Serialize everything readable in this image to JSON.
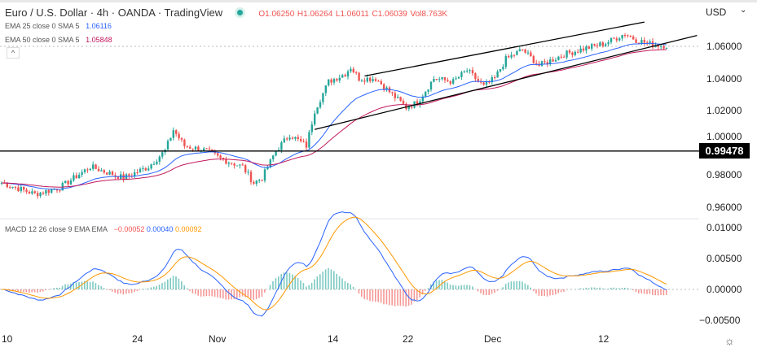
{
  "header": {
    "title": "Euro / U.S. Dollar · 4h · OANDA · TradingView",
    "o": "O1.06250",
    "h": "H1.06264",
    "l": "L1.06011",
    "c": "C1.06039",
    "vol": "Vol8.763K"
  },
  "indicators": [
    {
      "label": "EMA 25 close 0 SMA 5",
      "value": "1.06116",
      "color": "#2962ff"
    },
    {
      "label": "EMA 50 close 0 SMA 5",
      "value": "1.05848",
      "color": "#c2185b"
    }
  ],
  "macd": {
    "label": "MACD 12 26 close 9 EMA EMA",
    "hist": "−0.00052",
    "macd": "0.00040",
    "signal": "0.00092"
  },
  "currency": "USD",
  "colors": {
    "up": "#26a69a",
    "down": "#ef5350",
    "macd": "#2962ff",
    "signal": "#ff9800",
    "ema25": "#2962ff",
    "ema50": "#c2185b"
  },
  "chart_data": {
    "type": "candlestick",
    "x_unit": "bar index (4h)",
    "price_ylim": [
      0.95,
      1.075
    ],
    "price_ticks": [
      "1.06000",
      "1.04000",
      "1.02000",
      "1.00000",
      "0.98000",
      "0.96000"
    ],
    "macd_ylim": [
      -0.0065,
      0.0105
    ],
    "macd_ticks": [
      "0.01000",
      "0.00500",
      "0.00000",
      "−0.00500"
    ],
    "x_ticks": [
      "10",
      "24",
      "Nov",
      "14",
      "22",
      "Dec",
      "12"
    ],
    "horizontal_level": {
      "price": 0.99478,
      "label": "0.99478"
    },
    "trendlines": [
      {
        "from": [
          131,
          1.0415
        ],
        "to": [
          228,
          1.0738
        ]
      },
      {
        "from": [
          113,
          1.0082
        ],
        "to": [
          247,
          1.0651
        ]
      }
    ],
    "close_path": [
      [
        0,
        0.975
      ],
      [
        12,
        0.968
      ],
      [
        21,
        0.972
      ],
      [
        32,
        0.985
      ],
      [
        44,
        0.978
      ],
      [
        53,
        0.985
      ],
      [
        59,
        0.995
      ],
      [
        62,
        1.008
      ],
      [
        66,
        0.998
      ],
      [
        74,
        0.995
      ],
      [
        79,
        0.99
      ],
      [
        87,
        0.985
      ],
      [
        91,
        0.975
      ],
      [
        94,
        0.978
      ],
      [
        99,
        0.995
      ],
      [
        104,
        1.005
      ],
      [
        110,
        0.998
      ],
      [
        113,
        1.02
      ],
      [
        118,
        1.038
      ],
      [
        124,
        1.043
      ],
      [
        126,
        1.047
      ],
      [
        129,
        1.04
      ],
      [
        135,
        1.04
      ],
      [
        141,
        1.03
      ],
      [
        146,
        1.022
      ],
      [
        150,
        1.025
      ],
      [
        156,
        1.04
      ],
      [
        163,
        1.038
      ],
      [
        168,
        1.045
      ],
      [
        174,
        1.035
      ],
      [
        178,
        1.04
      ],
      [
        182,
        1.052
      ],
      [
        188,
        1.058
      ],
      [
        194,
        1.048
      ],
      [
        203,
        1.055
      ],
      [
        209,
        1.058
      ],
      [
        218,
        1.062
      ],
      [
        225,
        1.068
      ],
      [
        229,
        1.064
      ],
      [
        235,
        1.061
      ],
      [
        240,
        1.0604
      ]
    ]
  }
}
